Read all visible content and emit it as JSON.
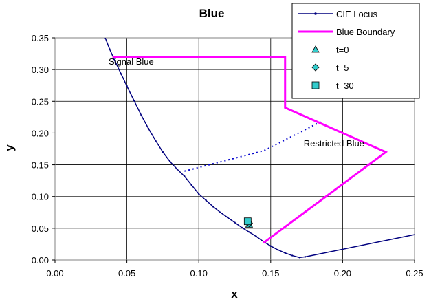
{
  "chart_data": {
    "type": "scatter",
    "title": "Blue",
    "xlabel": "x",
    "ylabel": "y",
    "xlim": [
      0.0,
      0.25
    ],
    "ylim": [
      0.0,
      0.35
    ],
    "x_ticks": [
      "0.00",
      "0.05",
      "0.10",
      "0.15",
      "0.20",
      "0.25"
    ],
    "y_ticks": [
      "0.00",
      "0.05",
      "0.10",
      "0.15",
      "0.20",
      "0.25",
      "0.30",
      "0.35"
    ],
    "grid": true,
    "legend_position": "top-right",
    "series": [
      {
        "name": "CIE Locus",
        "kind": "line",
        "color": "#00007f",
        "points": [
          [
            0.0341,
            0.355
          ],
          [
            0.038,
            0.332
          ],
          [
            0.042,
            0.312
          ],
          [
            0.046,
            0.293
          ],
          [
            0.05,
            0.274
          ],
          [
            0.055,
            0.251
          ],
          [
            0.06,
            0.228
          ],
          [
            0.065,
            0.207
          ],
          [
            0.07,
            0.188
          ],
          [
            0.075,
            0.17
          ],
          [
            0.08,
            0.155
          ],
          [
            0.085,
            0.143
          ],
          [
            0.09,
            0.132
          ],
          [
            0.095,
            0.118
          ],
          [
            0.1,
            0.104
          ],
          [
            0.105,
            0.094
          ],
          [
            0.11,
            0.084
          ],
          [
            0.115,
            0.075
          ],
          [
            0.12,
            0.067
          ],
          [
            0.125,
            0.059
          ],
          [
            0.13,
            0.051
          ],
          [
            0.135,
            0.044
          ],
          [
            0.14,
            0.037
          ],
          [
            0.145,
            0.029
          ],
          [
            0.15,
            0.022
          ],
          [
            0.155,
            0.016
          ],
          [
            0.16,
            0.011
          ],
          [
            0.165,
            0.007
          ],
          [
            0.17,
            0.004
          ],
          [
            0.174,
            0.005
          ]
        ]
      },
      {
        "name": "",
        "kind": "line",
        "color": "#00007f",
        "points": [
          [
            0.1741,
            0.005
          ],
          [
            0.25,
            0.04
          ]
        ]
      },
      {
        "name": "",
        "kind": "dotted-line",
        "color": "#0000cc",
        "points": [
          [
            0.09,
            0.14
          ],
          [
            0.145,
            0.172
          ],
          [
            0.185,
            0.218
          ]
        ]
      },
      {
        "name": "Blue Boundary",
        "kind": "line",
        "color": "#ff00ff",
        "points": [
          [
            0.04,
            0.32
          ],
          [
            0.16,
            0.32
          ],
          [
            0.16,
            0.24
          ],
          [
            0.23,
            0.17
          ],
          [
            0.145,
            0.027
          ]
        ]
      },
      {
        "name": "t=0",
        "kind": "marker",
        "marker": "triangle",
        "color": "#33cccc",
        "points": [
          [
            0.135,
            0.056
          ]
        ]
      },
      {
        "name": "t=5",
        "kind": "marker",
        "marker": "diamond",
        "color": "#33cccc",
        "points": [
          [
            0.135,
            0.058
          ]
        ]
      },
      {
        "name": "t=30",
        "kind": "marker",
        "marker": "square",
        "color": "#33cccc",
        "points": [
          [
            0.134,
            0.061
          ]
        ]
      }
    ],
    "annotations": [
      {
        "text": "Signal Blue",
        "x": 0.053,
        "y": 0.308
      },
      {
        "text": "Restricted Blue",
        "x": 0.194,
        "y": 0.179
      }
    ]
  }
}
